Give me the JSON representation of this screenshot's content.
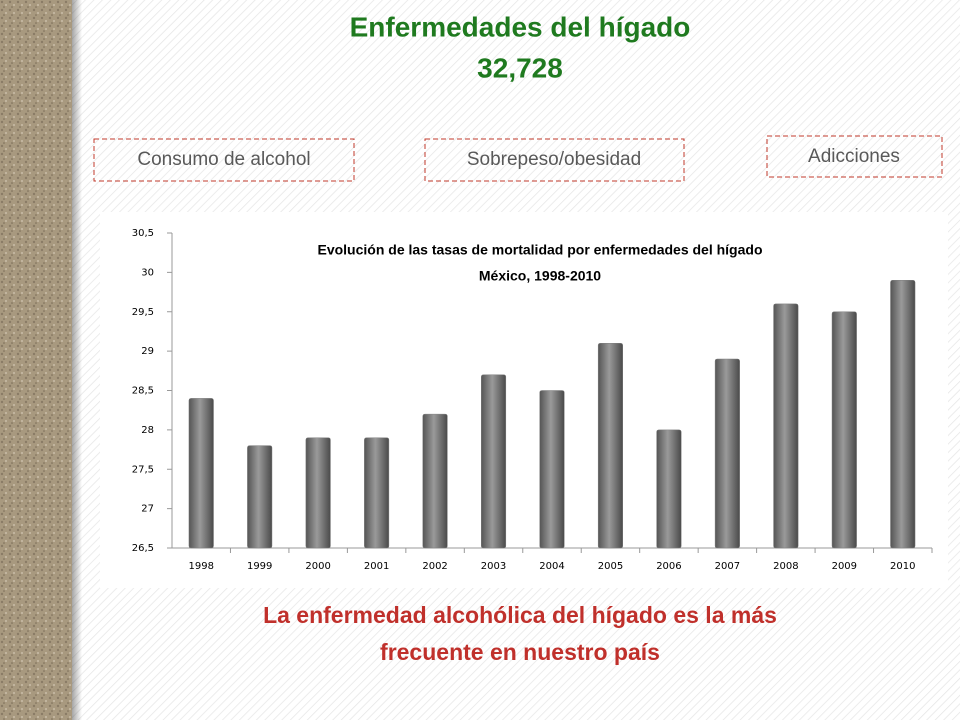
{
  "header": {
    "title": "Enfermedades del hígado",
    "total": "32,728"
  },
  "factors": [
    "Consumo de alcohol",
    "Sobrepeso/obesidad",
    "Adicciones"
  ],
  "chart_data": {
    "type": "bar",
    "title": "Evolución de las tasas de mortalidad por enfermedades del hígado",
    "subtitle": "México, 1998-2010",
    "categories": [
      "1998",
      "1999",
      "2000",
      "2001",
      "2002",
      "2003",
      "2004",
      "2005",
      "2006",
      "2007",
      "2008",
      "2009",
      "2010"
    ],
    "values": [
      28.4,
      27.8,
      27.9,
      27.9,
      28.2,
      28.7,
      28.5,
      29.1,
      28.0,
      28.9,
      29.6,
      29.5,
      29.9
    ],
    "color": "#7f7f7f",
    "ylim": [
      26.5,
      30.5
    ],
    "yticks": [
      {
        "value": 26.5,
        "label": "26,5"
      },
      27,
      {
        "value": 27.5,
        "label": "27,5"
      },
      28,
      {
        "value": 28.5,
        "label": "28,5"
      },
      29,
      {
        "value": 29.5,
        "label": "29,5"
      },
      30,
      {
        "value": 30.5,
        "label": "30,5"
      }
    ],
    "grid": false
  },
  "footer": {
    "lines": [
      "La enfermedad alcohólica del hígado es la más",
      "frecuente en nuestro país"
    ]
  }
}
